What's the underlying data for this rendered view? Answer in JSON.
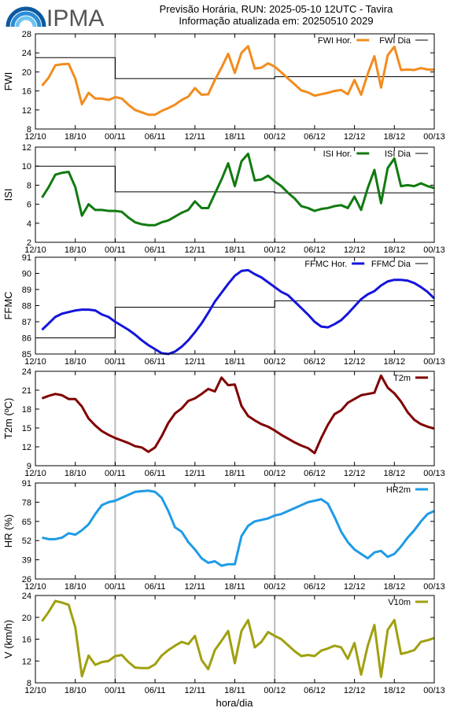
{
  "header": {
    "logo_text": "IPMA",
    "title_line1": "Previsão Horária, RUN: 2025-05-10 12UTC - Tavira",
    "title_line2": "Informação atualizada em: 20250510 2029"
  },
  "x_axis": {
    "label": "hora/dia",
    "ticks": [
      "12/10",
      "18/10",
      "00/11",
      "06/11",
      "12/11",
      "18/11",
      "00/12",
      "06/12",
      "12/12",
      "18/12",
      "00/13"
    ],
    "range_hours": [
      0,
      60
    ],
    "day_dividers_hours": [
      12,
      36
    ]
  },
  "chart_data": [
    {
      "type": "line",
      "ylabel": "FWI",
      "ylim": [
        8,
        28
      ],
      "yticks": [
        8,
        12,
        16,
        20,
        24,
        28
      ],
      "legend": [
        {
          "name": "FWI Hor.",
          "color": "#f28c1e"
        },
        {
          "name": "FWI Dia",
          "color": "#000000"
        }
      ],
      "hourly": {
        "name": "FWI Hor.",
        "color": "#f28c1e",
        "x": [
          1,
          2,
          3,
          4,
          5,
          6,
          7,
          8,
          9,
          10,
          11,
          12,
          13,
          14,
          15,
          16,
          17,
          18,
          19,
          20,
          21,
          22,
          23,
          24,
          25,
          26,
          27,
          28,
          29,
          30,
          31,
          32,
          33,
          34,
          35,
          36,
          37,
          38,
          39,
          40,
          41,
          42,
          43,
          44,
          45,
          46,
          47,
          48,
          49,
          50,
          51,
          52,
          53,
          54,
          55,
          56,
          57,
          58,
          59,
          60
        ],
        "y": [
          17.1,
          18.8,
          21.4,
          21.6,
          21.7,
          18.6,
          13.2,
          15.6,
          14.4,
          14.4,
          14.1,
          14.7,
          14.4,
          13.1,
          12.0,
          11.5,
          11.0,
          11.0,
          11.8,
          12.4,
          13.1,
          14.1,
          14.8,
          16.6,
          15.2,
          15.3,
          18.3,
          20.9,
          23.8,
          19.8,
          24.0,
          25.4,
          20.7,
          20.9,
          21.8,
          21.1,
          19.9,
          18.6,
          17.4,
          16.1,
          15.7,
          15.0,
          15.3,
          15.6,
          16.0,
          16.2,
          15.3,
          18.3,
          15.2,
          19.6,
          23.3,
          16.7,
          23.5,
          25.3,
          20.4,
          20.5,
          20.4,
          20.8,
          20.5,
          20.5
        ]
      },
      "daily": {
        "name": "FWI Dia",
        "color": "#000000",
        "segments": [
          {
            "from": 0,
            "to": 12,
            "value": 23.0
          },
          {
            "from": 12,
            "to": 36,
            "value": 18.6
          },
          {
            "from": 36,
            "to": 60,
            "value": 19.0
          }
        ]
      }
    },
    {
      "type": "line",
      "ylabel": "ISI",
      "ylim": [
        2,
        12
      ],
      "yticks": [
        2,
        4,
        6,
        8,
        10,
        12
      ],
      "legend": [
        {
          "name": "ISI Hor.",
          "color": "#117a11"
        },
        {
          "name": "ISI Dia",
          "color": "#000000"
        }
      ],
      "hourly": {
        "name": "ISI Hor.",
        "color": "#117a11",
        "x": [
          1,
          2,
          3,
          4,
          5,
          6,
          7,
          8,
          9,
          10,
          11,
          12,
          13,
          14,
          15,
          16,
          17,
          18,
          19,
          20,
          21,
          22,
          23,
          24,
          25,
          26,
          27,
          28,
          29,
          30,
          31,
          32,
          33,
          34,
          35,
          36,
          37,
          38,
          39,
          40,
          41,
          42,
          43,
          44,
          45,
          46,
          47,
          48,
          49,
          50,
          51,
          52,
          53,
          54,
          55,
          56,
          57,
          58,
          59,
          60
        ],
        "y": [
          6.7,
          7.8,
          9.1,
          9.3,
          9.4,
          7.8,
          4.8,
          6.0,
          5.4,
          5.4,
          5.3,
          5.3,
          5.2,
          4.6,
          4.1,
          3.9,
          3.8,
          3.8,
          4.1,
          4.3,
          4.7,
          5.1,
          5.4,
          6.3,
          5.6,
          5.6,
          7.1,
          8.6,
          10.3,
          7.9,
          10.5,
          11.3,
          8.5,
          8.6,
          9.0,
          8.4,
          7.9,
          7.2,
          6.6,
          5.8,
          5.6,
          5.3,
          5.5,
          5.6,
          5.8,
          5.9,
          5.6,
          6.8,
          5.4,
          7.7,
          9.6,
          6.1,
          9.8,
          10.8,
          7.9,
          8.0,
          7.9,
          8.2,
          7.9,
          7.7
        ]
      },
      "daily": {
        "name": "ISI Dia",
        "color": "#000000",
        "segments": [
          {
            "from": 0,
            "to": 12,
            "value": 10.0
          },
          {
            "from": 12,
            "to": 36,
            "value": 7.3
          },
          {
            "from": 36,
            "to": 60,
            "value": 7.2
          }
        ]
      }
    },
    {
      "type": "line",
      "ylabel": "FFMC",
      "ylim": [
        85,
        91
      ],
      "yticks": [
        85,
        86,
        87,
        88,
        89,
        90,
        91
      ],
      "legend": [
        {
          "name": "FFMC Hor.",
          "color": "#1414dc"
        },
        {
          "name": "FFMC Dia",
          "color": "#000000"
        }
      ],
      "hourly": {
        "name": "FFMC Hor.",
        "color": "#1414dc",
        "x": [
          1,
          2,
          3,
          4,
          5,
          6,
          7,
          8,
          9,
          10,
          11,
          12,
          13,
          14,
          15,
          16,
          17,
          18,
          19,
          20,
          21,
          22,
          23,
          24,
          25,
          26,
          27,
          28,
          29,
          30,
          31,
          32,
          33,
          34,
          35,
          36,
          37,
          38,
          39,
          40,
          41,
          42,
          43,
          44,
          45,
          46,
          47,
          48,
          49,
          50,
          51,
          52,
          53,
          54,
          55,
          56,
          57,
          58,
          59,
          60
        ],
        "y": [
          86.5,
          86.9,
          87.3,
          87.5,
          87.6,
          87.7,
          87.75,
          87.75,
          87.7,
          87.45,
          87.3,
          87.0,
          86.75,
          86.5,
          86.2,
          85.85,
          85.55,
          85.3,
          85.05,
          85.0,
          85.15,
          85.45,
          85.85,
          86.35,
          86.9,
          87.55,
          88.25,
          88.8,
          89.35,
          89.85,
          90.15,
          90.2,
          89.95,
          89.75,
          89.45,
          89.15,
          88.85,
          88.65,
          88.25,
          87.85,
          87.45,
          87.0,
          86.7,
          86.65,
          86.85,
          87.1,
          87.5,
          87.95,
          88.4,
          88.7,
          88.9,
          89.25,
          89.5,
          89.6,
          89.6,
          89.55,
          89.4,
          89.15,
          88.85,
          88.45
        ]
      },
      "daily": {
        "name": "FFMC Dia",
        "color": "#000000",
        "segments": [
          {
            "from": 0,
            "to": 12,
            "value": 86.0
          },
          {
            "from": 12,
            "to": 36,
            "value": 87.9
          },
          {
            "from": 36,
            "to": 60,
            "value": 88.3
          }
        ]
      }
    },
    {
      "type": "line",
      "ylabel": "T2m (ºC)",
      "ylim": [
        9,
        24
      ],
      "yticks": [
        9,
        12,
        15,
        18,
        21,
        24
      ],
      "legend": [
        {
          "name": "T2m",
          "color": "#800000"
        }
      ],
      "hourly": {
        "name": "T2m",
        "color": "#800000",
        "x": [
          1,
          2,
          3,
          4,
          5,
          6,
          7,
          8,
          9,
          10,
          11,
          12,
          13,
          14,
          15,
          16,
          17,
          18,
          19,
          20,
          21,
          22,
          23,
          24,
          25,
          26,
          27,
          28,
          29,
          30,
          31,
          32,
          33,
          34,
          35,
          36,
          37,
          38,
          39,
          40,
          41,
          42,
          43,
          44,
          45,
          46,
          47,
          48,
          49,
          50,
          51,
          52,
          53,
          54,
          55,
          56,
          57,
          58,
          59,
          60
        ],
        "y": [
          19.7,
          20.1,
          20.4,
          20.2,
          19.6,
          19.6,
          18.4,
          16.5,
          15.4,
          14.5,
          13.9,
          13.4,
          13.0,
          12.6,
          12.1,
          11.9,
          11.2,
          11.9,
          13.7,
          15.8,
          17.3,
          18.1,
          19.3,
          19.7,
          20.4,
          21.2,
          20.8,
          23.0,
          21.8,
          21.9,
          18.5,
          16.9,
          16.2,
          15.6,
          15.2,
          14.6,
          13.9,
          13.3,
          12.7,
          12.2,
          11.8,
          11.0,
          13.4,
          15.5,
          17.2,
          17.8,
          19.0,
          19.6,
          20.2,
          20.4,
          20.6,
          23.3,
          21.4,
          20.5,
          19.2,
          17.5,
          16.3,
          15.6,
          15.2,
          14.9
        ]
      }
    },
    {
      "type": "line",
      "ylabel": "HR (%)",
      "ylim": [
        26,
        91
      ],
      "yticks": [
        26,
        39,
        52,
        65,
        78,
        91
      ],
      "legend": [
        {
          "name": "HR2m",
          "color": "#1e9be6"
        }
      ],
      "hourly": {
        "name": "HR2m",
        "color": "#1e9be6",
        "x": [
          1,
          2,
          3,
          4,
          5,
          6,
          7,
          8,
          9,
          10,
          11,
          12,
          13,
          14,
          15,
          16,
          17,
          18,
          19,
          20,
          21,
          22,
          23,
          24,
          25,
          26,
          27,
          28,
          29,
          30,
          31,
          32,
          33,
          34,
          35,
          36,
          37,
          38,
          39,
          40,
          41,
          42,
          43,
          44,
          45,
          46,
          47,
          48,
          49,
          50,
          51,
          52,
          53,
          54,
          55,
          56,
          57,
          58,
          59,
          60
        ],
        "y": [
          54,
          53,
          53,
          54,
          57,
          56,
          59,
          63,
          70,
          76,
          78,
          79,
          81,
          83,
          85,
          85.5,
          85.8,
          85,
          81,
          72,
          61,
          58,
          51,
          46,
          40,
          37,
          38,
          35,
          36,
          36,
          55,
          62,
          65,
          66,
          67,
          69,
          70,
          72,
          74,
          76,
          78,
          79,
          80,
          77,
          68,
          58,
          51,
          46,
          43,
          40,
          44,
          45,
          41,
          43,
          48,
          54,
          59,
          65,
          70,
          72
        ]
      }
    },
    {
      "type": "line",
      "ylabel": "V (km/h)",
      "ylim": [
        8,
        24
      ],
      "yticks": [
        8,
        12,
        16,
        20,
        24
      ],
      "legend": [
        {
          "name": "V10m",
          "color": "#a0a010"
        }
      ],
      "hourly": {
        "name": "V10m",
        "color": "#a0a010",
        "x": [
          1,
          2,
          3,
          4,
          5,
          6,
          7,
          8,
          9,
          10,
          11,
          12,
          13,
          14,
          15,
          16,
          17,
          18,
          19,
          20,
          21,
          22,
          23,
          24,
          25,
          26,
          27,
          28,
          29,
          30,
          31,
          32,
          33,
          34,
          35,
          36,
          37,
          38,
          39,
          40,
          41,
          42,
          43,
          44,
          45,
          46,
          47,
          48,
          49,
          50,
          51,
          52,
          53,
          54,
          55,
          56,
          57,
          58,
          59,
          60
        ],
        "y": [
          19.3,
          21.0,
          23.0,
          22.7,
          22.3,
          18.2,
          9.2,
          13.0,
          11.3,
          11.8,
          12.0,
          12.9,
          13.1,
          11.8,
          10.8,
          10.7,
          10.7,
          11.4,
          13.0,
          14.0,
          14.8,
          15.5,
          15.1,
          16.6,
          12.2,
          10.5,
          14.0,
          15.7,
          17.5,
          11.6,
          17.5,
          19.5,
          14.5,
          15.5,
          17.3,
          16.6,
          16.0,
          14.9,
          13.8,
          12.9,
          13.1,
          12.9,
          13.9,
          14.3,
          14.8,
          14.5,
          12.4,
          15.3,
          9.5,
          14.8,
          18.6,
          9.1,
          17.7,
          19.5,
          13.3,
          13.6,
          14.0,
          15.5,
          15.8,
          16.2
        ]
      }
    }
  ]
}
